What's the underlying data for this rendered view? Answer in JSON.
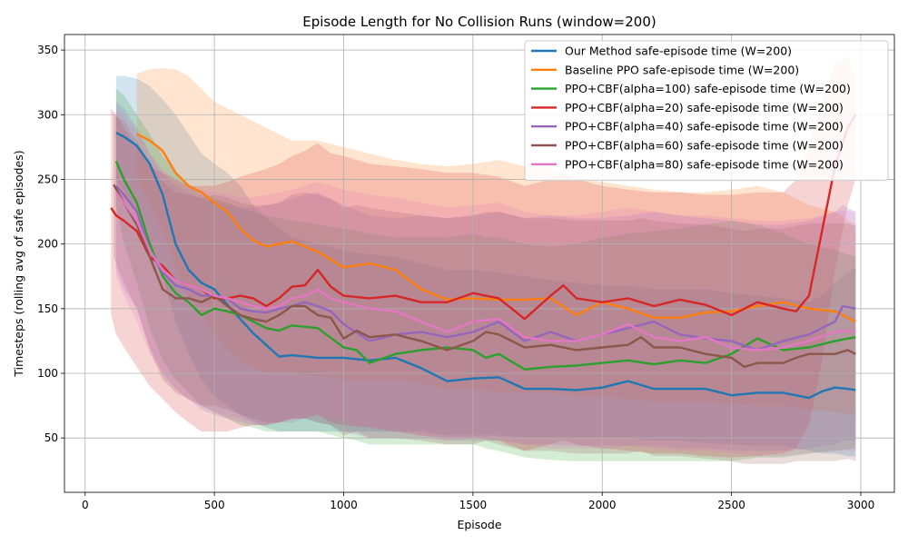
{
  "chart_data": {
    "type": "line",
    "title": "Episode Length for No Collision Runs (window=200)",
    "xlabel": "Episode",
    "ylabel": "Timesteps (rolling avg of safe episodes)",
    "xlim": [
      -80,
      3130
    ],
    "ylim": [
      8,
      362
    ],
    "xticks": [
      0,
      500,
      1000,
      1500,
      2000,
      2500,
      3000
    ],
    "yticks": [
      50,
      100,
      150,
      200,
      250,
      300,
      350
    ],
    "grid": true,
    "legend_position": "top-right",
    "series": [
      {
        "name": "Our Method safe-episode time (W=200)",
        "color": "#1f77b4",
        "x": [
          120,
          150,
          200,
          250,
          300,
          350,
          400,
          450,
          500,
          550,
          600,
          650,
          700,
          750,
          800,
          900,
          1000,
          1100,
          1200,
          1300,
          1400,
          1500,
          1600,
          1700,
          1800,
          1900,
          2000,
          2100,
          2200,
          2300,
          2400,
          2500,
          2600,
          2700,
          2800,
          2850,
          2900,
          2950,
          2980
        ],
        "y": [
          286,
          283,
          276,
          262,
          238,
          200,
          180,
          170,
          165,
          153,
          142,
          131,
          122,
          113,
          114,
          112,
          112,
          110,
          112,
          104,
          94,
          96,
          97,
          88,
          88,
          87,
          89,
          94,
          88,
          88,
          88,
          83,
          85,
          85,
          81,
          86,
          89,
          88,
          87
        ],
        "band_upper": [
          330,
          330,
          328,
          322,
          312,
          300,
          285,
          270,
          262,
          255,
          245,
          230,
          220,
          212,
          205,
          200,
          195,
          192,
          190,
          185,
          180,
          180,
          178,
          175,
          172,
          170,
          168,
          168,
          165,
          165,
          165,
          162,
          160,
          158,
          155,
          160,
          170,
          178,
          182
        ],
        "band_lower": [
          250,
          240,
          225,
          200,
          175,
          140,
          115,
          95,
          82,
          75,
          68,
          62,
          58,
          55,
          55,
          55,
          55,
          55,
          55,
          55,
          52,
          52,
          52,
          50,
          50,
          50,
          50,
          50,
          48,
          48,
          46,
          45,
          44,
          44,
          40,
          38,
          38,
          36,
          36
        ]
      },
      {
        "name": "Baseline PPO safe-episode time (W=200)",
        "color": "#ff7f0e",
        "x": [
          200,
          250,
          300,
          350,
          400,
          450,
          500,
          550,
          600,
          650,
          700,
          750,
          800,
          900,
          1000,
          1100,
          1200,
          1300,
          1400,
          1500,
          1600,
          1700,
          1800,
          1900,
          2000,
          2100,
          2200,
          2300,
          2400,
          2500,
          2600,
          2700,
          2800,
          2900,
          2980
        ],
        "y": [
          285,
          280,
          272,
          255,
          245,
          240,
          232,
          225,
          212,
          203,
          198,
          200,
          202,
          194,
          182,
          185,
          180,
          165,
          157,
          158,
          157,
          157,
          158,
          145,
          155,
          150,
          143,
          143,
          147,
          148,
          152,
          155,
          150,
          148,
          140
        ],
        "band_upper": [
          332,
          335,
          336,
          335,
          330,
          320,
          310,
          305,
          300,
          295,
          290,
          285,
          280,
          280,
          275,
          270,
          265,
          262,
          260,
          262,
          265,
          260,
          258,
          250,
          248,
          245,
          242,
          240,
          240,
          242,
          245,
          240,
          230,
          225,
          215
        ],
        "band_lower": [
          250,
          230,
          210,
          180,
          160,
          145,
          130,
          118,
          110,
          105,
          100,
          100,
          100,
          98,
          95,
          95,
          95,
          92,
          88,
          88,
          85,
          85,
          85,
          82,
          82,
          80,
          78,
          78,
          78,
          76,
          75,
          75,
          72,
          70,
          68
        ]
      },
      {
        "name": "PPO+CBF(alpha=100) safe-episode time (W=200)",
        "color": "#2ca02c",
        "x": [
          120,
          150,
          200,
          250,
          300,
          350,
          400,
          450,
          500,
          550,
          600,
          650,
          700,
          750,
          800,
          900,
          1000,
          1050,
          1100,
          1200,
          1300,
          1400,
          1500,
          1550,
          1600,
          1700,
          1800,
          1900,
          2000,
          2100,
          2200,
          2300,
          2400,
          2500,
          2600,
          2700,
          2800,
          2900,
          2980
        ],
        "y": [
          264,
          250,
          232,
          200,
          175,
          162,
          155,
          145,
          150,
          148,
          145,
          140,
          135,
          133,
          137,
          135,
          120,
          118,
          108,
          115,
          118,
          120,
          118,
          112,
          115,
          103,
          105,
          106,
          108,
          110,
          107,
          110,
          108,
          115,
          127,
          118,
          120,
          125,
          128
        ],
        "band_upper": [
          320,
          315,
          300,
          285,
          268,
          255,
          245,
          238,
          235,
          232,
          228,
          225,
          222,
          220,
          218,
          215,
          212,
          210,
          208,
          205,
          205,
          205,
          208,
          205,
          205,
          200,
          198,
          200,
          205,
          208,
          210,
          212,
          215,
          218,
          215,
          208,
          200,
          195,
          190
        ],
        "band_lower": [
          230,
          200,
          170,
          135,
          110,
          95,
          85,
          75,
          70,
          65,
          60,
          58,
          55,
          55,
          55,
          55,
          50,
          48,
          45,
          45,
          45,
          45,
          45,
          42,
          40,
          35,
          33,
          32,
          32,
          32,
          32,
          32,
          32,
          32,
          35,
          35,
          38,
          40,
          42
        ]
      },
      {
        "name": "PPO+CBF(alpha=20) safe-episode time (W=200)",
        "color": "#d62728",
        "x": [
          100,
          120,
          150,
          200,
          250,
          300,
          350,
          400,
          450,
          500,
          550,
          600,
          650,
          700,
          750,
          800,
          850,
          900,
          950,
          1000,
          1100,
          1200,
          1300,
          1400,
          1500,
          1600,
          1700,
          1800,
          1850,
          1900,
          2000,
          2100,
          2200,
          2300,
          2400,
          2500,
          2600,
          2700,
          2750,
          2800,
          2850,
          2900,
          2950,
          2980
        ],
        "y": [
          228,
          222,
          218,
          210,
          190,
          183,
          172,
          168,
          165,
          158,
          158,
          160,
          158,
          152,
          158,
          167,
          168,
          180,
          167,
          160,
          158,
          160,
          155,
          155,
          162,
          158,
          142,
          160,
          168,
          158,
          155,
          158,
          152,
          157,
          153,
          145,
          155,
          150,
          148,
          160,
          210,
          260,
          290,
          300
        ],
        "band_upper": [
          305,
          300,
          290,
          275,
          260,
          255,
          250,
          245,
          245,
          245,
          248,
          252,
          255,
          258,
          262,
          268,
          272,
          278,
          270,
          268,
          262,
          260,
          258,
          255,
          255,
          252,
          245,
          250,
          255,
          250,
          245,
          242,
          240,
          240,
          238,
          238,
          240,
          240,
          250,
          275,
          310,
          340,
          345,
          330
        ],
        "band_lower": [
          145,
          130,
          120,
          105,
          90,
          80,
          70,
          62,
          55,
          55,
          55,
          58,
          60,
          60,
          62,
          65,
          65,
          68,
          62,
          60,
          58,
          55,
          52,
          50,
          50,
          48,
          40,
          45,
          48,
          45,
          42,
          40,
          38,
          38,
          36,
          35,
          36,
          38,
          42,
          60,
          110,
          180,
          230,
          250
        ]
      },
      {
        "name": "PPO+CBF(alpha=40) safe-episode time (W=200)",
        "color": "#9467bd",
        "x": [
          120,
          150,
          200,
          250,
          300,
          350,
          400,
          450,
          500,
          550,
          600,
          650,
          700,
          750,
          800,
          850,
          900,
          950,
          1000,
          1100,
          1200,
          1300,
          1400,
          1500,
          1600,
          1700,
          1800,
          1900,
          2000,
          2100,
          2200,
          2300,
          2400,
          2500,
          2600,
          2700,
          2800,
          2900,
          2930,
          2980
        ],
        "y": [
          245,
          238,
          225,
          195,
          178,
          168,
          165,
          160,
          160,
          158,
          150,
          148,
          147,
          150,
          152,
          155,
          152,
          148,
          138,
          125,
          130,
          132,
          128,
          132,
          140,
          125,
          132,
          125,
          130,
          135,
          140,
          130,
          127,
          125,
          118,
          125,
          130,
          140,
          152,
          150
        ],
        "band_upper": [
          310,
          305,
          290,
          270,
          255,
          245,
          240,
          235,
          232,
          230,
          228,
          228,
          230,
          232,
          235,
          238,
          240,
          235,
          230,
          222,
          220,
          222,
          220,
          222,
          225,
          220,
          222,
          220,
          220,
          222,
          225,
          222,
          220,
          218,
          215,
          215,
          218,
          225,
          230,
          225
        ],
        "band_lower": [
          180,
          165,
          150,
          120,
          100,
          88,
          80,
          72,
          68,
          65,
          62,
          60,
          60,
          62,
          62,
          65,
          62,
          60,
          55,
          50,
          50,
          50,
          48,
          48,
          48,
          45,
          45,
          44,
          44,
          44,
          44,
          42,
          42,
          40,
          40,
          40,
          42,
          45,
          48,
          48
        ]
      },
      {
        "name": "PPO+CBF(alpha=60) safe-episode time (W=200)",
        "color": "#8c564b",
        "x": [
          110,
          150,
          200,
          250,
          300,
          350,
          400,
          450,
          500,
          550,
          600,
          650,
          700,
          750,
          800,
          850,
          900,
          950,
          1000,
          1050,
          1100,
          1200,
          1300,
          1400,
          1500,
          1550,
          1600,
          1700,
          1800,
          1900,
          2000,
          2100,
          2150,
          2200,
          2300,
          2400,
          2500,
          2550,
          2600,
          2700,
          2750,
          2800,
          2900,
          2950,
          2980
        ],
        "y": [
          246,
          232,
          215,
          190,
          165,
          158,
          158,
          155,
          160,
          152,
          145,
          142,
          140,
          145,
          152,
          152,
          145,
          143,
          127,
          133,
          128,
          130,
          125,
          118,
          125,
          132,
          130,
          120,
          122,
          118,
          120,
          122,
          128,
          120,
          120,
          115,
          112,
          105,
          108,
          108,
          112,
          115,
          115,
          118,
          115
        ],
        "band_upper": [
          300,
          295,
          280,
          262,
          248,
          240,
          238,
          236,
          238,
          236,
          232,
          230,
          230,
          232,
          238,
          240,
          238,
          235,
          228,
          230,
          228,
          225,
          222,
          220,
          222,
          225,
          225,
          220,
          220,
          218,
          218,
          218,
          220,
          218,
          216,
          215,
          212,
          210,
          212,
          212,
          214,
          216,
          216,
          216,
          214
        ],
        "band_lower": [
          190,
          170,
          150,
          118,
          95,
          85,
          80,
          75,
          75,
          72,
          68,
          65,
          62,
          62,
          65,
          65,
          62,
          60,
          52,
          55,
          50,
          50,
          48,
          45,
          45,
          48,
          45,
          40,
          40,
          38,
          38,
          38,
          40,
          36,
          36,
          34,
          32,
          30,
          30,
          30,
          32,
          32,
          32,
          34,
          32
        ]
      },
      {
        "name": "PPO+CBF(alpha=80) safe-episode time (W=200)",
        "color": "#e377c2",
        "x": [
          120,
          150,
          200,
          250,
          300,
          350,
          400,
          450,
          500,
          550,
          600,
          650,
          700,
          750,
          800,
          850,
          900,
          950,
          1000,
          1100,
          1200,
          1300,
          1400,
          1500,
          1600,
          1700,
          1800,
          1900,
          2000,
          2100,
          2200,
          2300,
          2400,
          2500,
          2600,
          2700,
          2800,
          2900,
          2950,
          2980
        ],
        "y": [
          240,
          232,
          218,
          195,
          180,
          172,
          168,
          165,
          160,
          158,
          155,
          152,
          150,
          152,
          158,
          160,
          165,
          158,
          155,
          150,
          148,
          140,
          132,
          140,
          142,
          128,
          125,
          125,
          130,
          138,
          128,
          125,
          128,
          120,
          118,
          120,
          125,
          132,
          133,
          132
        ],
        "band_upper": [
          305,
          300,
          288,
          270,
          258,
          250,
          245,
          242,
          240,
          238,
          236,
          236,
          238,
          240,
          242,
          245,
          248,
          245,
          242,
          238,
          236,
          232,
          228,
          230,
          232,
          225,
          222,
          222,
          225,
          228,
          225,
          222,
          222,
          220,
          218,
          218,
          220,
          225,
          226,
          225
        ],
        "band_lower": [
          175,
          160,
          140,
          115,
          98,
          88,
          80,
          75,
          70,
          68,
          65,
          62,
          60,
          62,
          64,
          66,
          68,
          65,
          62,
          58,
          56,
          52,
          48,
          50,
          50,
          45,
          42,
          42,
          42,
          44,
          42,
          40,
          40,
          38,
          36,
          36,
          38,
          40,
          40,
          40
        ]
      }
    ]
  }
}
